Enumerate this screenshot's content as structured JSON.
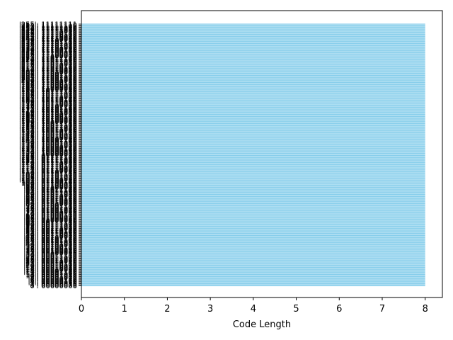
{
  "chart_data": {
    "type": "bar",
    "orientation": "horizontal",
    "xlabel": "Code Length",
    "ylabel": "",
    "xlim": [
      0,
      8.4
    ],
    "xticks": [
      0,
      1,
      2,
      3,
      4,
      5,
      6,
      7,
      8
    ],
    "bar_color": "#87CEEB",
    "grid": false,
    "category_count": 256,
    "categories_top": "'255': 11111111",
    "categories_bottom": "'0': 00000000",
    "value_all": 8
  }
}
